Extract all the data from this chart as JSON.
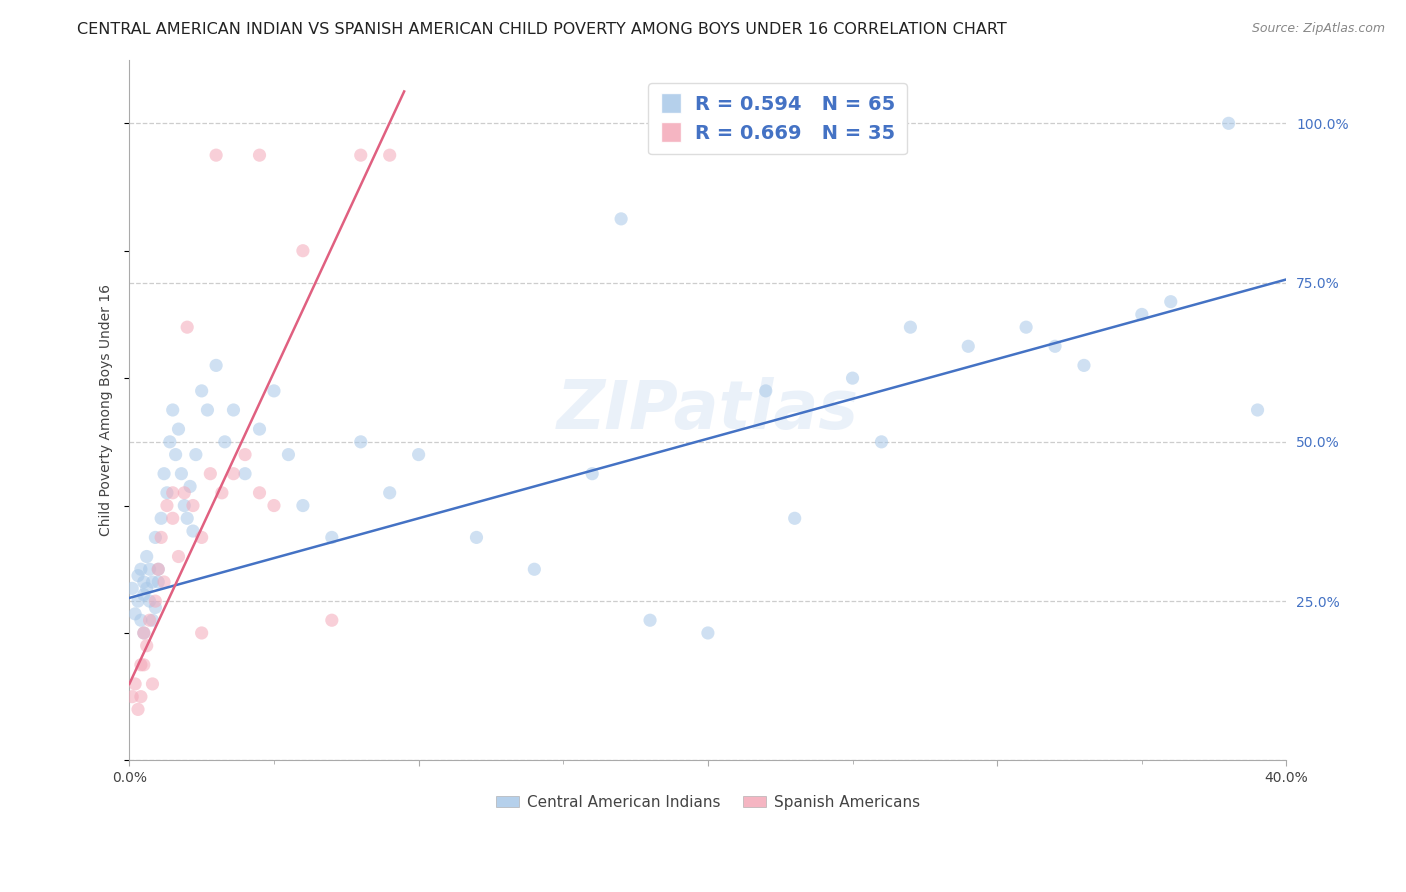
{
  "title": "CENTRAL AMERICAN INDIAN VS SPANISH AMERICAN CHILD POVERTY AMONG BOYS UNDER 16 CORRELATION CHART",
  "source": "Source: ZipAtlas.com",
  "ylabel": "Child Poverty Among Boys Under 16",
  "watermark": "ZIPatlas",
  "legend1_r": "R = 0.594",
  "legend1_n": "N = 65",
  "legend2_r": "R = 0.669",
  "legend2_n": "N = 35",
  "legend1_label": "Central American Indians",
  "legend2_label": "Spanish Americans",
  "blue_color": "#a8c8e8",
  "pink_color": "#f4a8b8",
  "line_blue": "#4472c4",
  "line_pink": "#e06080",
  "label_color": "#4472c4",
  "xlim": [
    0.0,
    0.4
  ],
  "ylim": [
    0.0,
    1.1
  ],
  "xtick_positions": [
    0.0,
    0.1,
    0.2,
    0.3,
    0.4
  ],
  "ytick_positions": [
    0.0,
    0.25,
    0.5,
    0.75,
    1.0
  ],
  "ytick_labels": [
    "",
    "25.0%",
    "50.0%",
    "75.0%",
    "100.0%"
  ],
  "xtick_labels": [
    "0.0%",
    "",
    "",
    "",
    "40.0%"
  ],
  "blue_x": [
    0.001,
    0.002,
    0.003,
    0.003,
    0.004,
    0.004,
    0.005,
    0.005,
    0.005,
    0.006,
    0.006,
    0.007,
    0.007,
    0.008,
    0.008,
    0.009,
    0.009,
    0.01,
    0.01,
    0.011,
    0.012,
    0.013,
    0.014,
    0.015,
    0.016,
    0.017,
    0.018,
    0.019,
    0.02,
    0.021,
    0.022,
    0.023,
    0.025,
    0.027,
    0.03,
    0.033,
    0.036,
    0.04,
    0.045,
    0.05,
    0.055,
    0.06,
    0.07,
    0.08,
    0.09,
    0.1,
    0.12,
    0.14,
    0.16,
    0.18,
    0.2,
    0.23,
    0.26,
    0.29,
    0.31,
    0.33,
    0.36,
    0.39,
    0.27,
    0.32,
    0.35,
    0.38,
    0.22,
    0.17,
    0.25
  ],
  "blue_y": [
    0.27,
    0.23,
    0.29,
    0.25,
    0.22,
    0.3,
    0.26,
    0.28,
    0.2,
    0.32,
    0.27,
    0.25,
    0.3,
    0.22,
    0.28,
    0.24,
    0.35,
    0.28,
    0.3,
    0.38,
    0.45,
    0.42,
    0.5,
    0.55,
    0.48,
    0.52,
    0.45,
    0.4,
    0.38,
    0.43,
    0.36,
    0.48,
    0.58,
    0.55,
    0.62,
    0.5,
    0.55,
    0.45,
    0.52,
    0.58,
    0.48,
    0.4,
    0.35,
    0.5,
    0.42,
    0.48,
    0.35,
    0.3,
    0.45,
    0.22,
    0.2,
    0.38,
    0.5,
    0.65,
    0.68,
    0.62,
    0.72,
    0.55,
    0.68,
    0.65,
    0.7,
    1.0,
    0.58,
    0.85,
    0.6
  ],
  "pink_x": [
    0.001,
    0.002,
    0.003,
    0.004,
    0.004,
    0.005,
    0.005,
    0.006,
    0.007,
    0.008,
    0.009,
    0.01,
    0.011,
    0.012,
    0.013,
    0.015,
    0.017,
    0.019,
    0.022,
    0.025,
    0.028,
    0.032,
    0.036,
    0.04,
    0.045,
    0.05,
    0.06,
    0.07,
    0.08,
    0.09,
    0.045,
    0.03,
    0.025,
    0.02,
    0.015
  ],
  "pink_y": [
    0.1,
    0.12,
    0.08,
    0.15,
    0.1,
    0.2,
    0.15,
    0.18,
    0.22,
    0.12,
    0.25,
    0.3,
    0.35,
    0.28,
    0.4,
    0.38,
    0.32,
    0.42,
    0.4,
    0.35,
    0.45,
    0.42,
    0.45,
    0.48,
    0.42,
    0.4,
    0.8,
    0.22,
    0.95,
    0.95,
    0.95,
    0.95,
    0.2,
    0.68,
    0.42
  ],
  "blue_line_x": [
    0.0,
    0.4
  ],
  "blue_line_y": [
    0.255,
    0.755
  ],
  "pink_line_x": [
    0.0,
    0.095
  ],
  "pink_line_y": [
    0.12,
    1.05
  ],
  "marker_size": 90,
  "alpha_scatter": 0.55,
  "background_color": "#ffffff",
  "grid_color": "#c8c8c8",
  "title_fontsize": 11.5,
  "axis_label_fontsize": 10,
  "tick_fontsize": 10,
  "watermark_fontsize": 48,
  "watermark_color": "#c5d8f0",
  "watermark_alpha": 0.35
}
